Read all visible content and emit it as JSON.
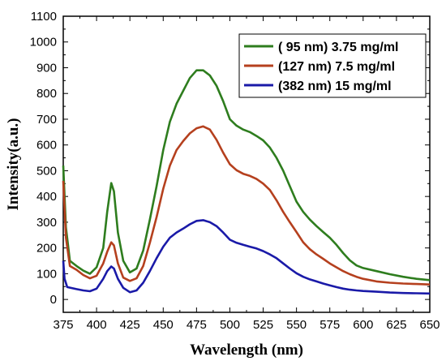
{
  "chart_data": {
    "type": "line",
    "xlabel": "Wavelength (nm)",
    "ylabel": "Intensity(a.u.)",
    "xlim": [
      375,
      650
    ],
    "ylim": [
      -50,
      1100
    ],
    "xticks": [
      375,
      400,
      425,
      450,
      475,
      500,
      525,
      550,
      575,
      600,
      625,
      650
    ],
    "yticks": [
      0,
      100,
      200,
      300,
      400,
      500,
      600,
      700,
      800,
      900,
      1000,
      1100
    ],
    "x_minor_step": 12.5,
    "y_minor_step": 50,
    "grid": false,
    "legend_position": "top-right",
    "series": [
      {
        "name": "( 95 nm) 3.75 mg/ml",
        "color": "#2e7d1e",
        "points": [
          [
            375,
            520
          ],
          [
            377,
            280
          ],
          [
            380,
            150
          ],
          [
            385,
            130
          ],
          [
            390,
            112
          ],
          [
            395,
            100
          ],
          [
            400,
            125
          ],
          [
            405,
            200
          ],
          [
            408,
            340
          ],
          [
            411,
            452
          ],
          [
            413,
            420
          ],
          [
            416,
            260
          ],
          [
            420,
            150
          ],
          [
            425,
            105
          ],
          [
            430,
            120
          ],
          [
            435,
            190
          ],
          [
            440,
            310
          ],
          [
            445,
            440
          ],
          [
            450,
            580
          ],
          [
            455,
            690
          ],
          [
            460,
            760
          ],
          [
            465,
            810
          ],
          [
            470,
            860
          ],
          [
            475,
            890
          ],
          [
            480,
            890
          ],
          [
            485,
            870
          ],
          [
            490,
            830
          ],
          [
            495,
            770
          ],
          [
            500,
            700
          ],
          [
            505,
            675
          ],
          [
            510,
            660
          ],
          [
            515,
            650
          ],
          [
            520,
            635
          ],
          [
            525,
            618
          ],
          [
            530,
            590
          ],
          [
            535,
            550
          ],
          [
            540,
            500
          ],
          [
            545,
            440
          ],
          [
            550,
            380
          ],
          [
            555,
            340
          ],
          [
            560,
            310
          ],
          [
            565,
            285
          ],
          [
            570,
            262
          ],
          [
            575,
            240
          ],
          [
            580,
            212
          ],
          [
            585,
            180
          ],
          [
            590,
            152
          ],
          [
            595,
            132
          ],
          [
            600,
            122
          ],
          [
            610,
            110
          ],
          [
            620,
            98
          ],
          [
            630,
            88
          ],
          [
            640,
            80
          ],
          [
            650,
            75
          ]
        ]
      },
      {
        "name": "(127 nm) 7.5 mg/ml",
        "color": "#b5401e",
        "points": [
          [
            375,
            460
          ],
          [
            377,
            240
          ],
          [
            380,
            130
          ],
          [
            385,
            115
          ],
          [
            390,
            95
          ],
          [
            395,
            82
          ],
          [
            400,
            92
          ],
          [
            405,
            140
          ],
          [
            408,
            185
          ],
          [
            411,
            222
          ],
          [
            413,
            210
          ],
          [
            416,
            140
          ],
          [
            420,
            85
          ],
          [
            425,
            72
          ],
          [
            430,
            82
          ],
          [
            435,
            130
          ],
          [
            440,
            220
          ],
          [
            445,
            320
          ],
          [
            450,
            430
          ],
          [
            455,
            520
          ],
          [
            460,
            580
          ],
          [
            465,
            615
          ],
          [
            470,
            645
          ],
          [
            475,
            665
          ],
          [
            480,
            672
          ],
          [
            485,
            660
          ],
          [
            490,
            620
          ],
          [
            495,
            570
          ],
          [
            500,
            525
          ],
          [
            505,
            502
          ],
          [
            510,
            488
          ],
          [
            515,
            480
          ],
          [
            520,
            468
          ],
          [
            525,
            450
          ],
          [
            530,
            425
          ],
          [
            535,
            385
          ],
          [
            540,
            340
          ],
          [
            545,
            300
          ],
          [
            550,
            262
          ],
          [
            555,
            222
          ],
          [
            560,
            195
          ],
          [
            565,
            175
          ],
          [
            570,
            158
          ],
          [
            575,
            140
          ],
          [
            580,
            125
          ],
          [
            585,
            110
          ],
          [
            590,
            98
          ],
          [
            595,
            88
          ],
          [
            600,
            80
          ],
          [
            610,
            70
          ],
          [
            620,
            65
          ],
          [
            630,
            62
          ],
          [
            640,
            60
          ],
          [
            650,
            58
          ]
        ]
      },
      {
        "name": "(382 nm) 15 mg/ml",
        "color": "#1a1aa8",
        "points": [
          [
            375,
            150
          ],
          [
            376,
            80
          ],
          [
            378,
            48
          ],
          [
            385,
            40
          ],
          [
            390,
            35
          ],
          [
            395,
            32
          ],
          [
            400,
            42
          ],
          [
            405,
            80
          ],
          [
            408,
            110
          ],
          [
            411,
            128
          ],
          [
            413,
            120
          ],
          [
            416,
            80
          ],
          [
            420,
            45
          ],
          [
            425,
            28
          ],
          [
            430,
            35
          ],
          [
            435,
            65
          ],
          [
            440,
            110
          ],
          [
            445,
            160
          ],
          [
            450,
            205
          ],
          [
            455,
            240
          ],
          [
            460,
            260
          ],
          [
            465,
            275
          ],
          [
            470,
            292
          ],
          [
            475,
            305
          ],
          [
            480,
            308
          ],
          [
            485,
            300
          ],
          [
            490,
            285
          ],
          [
            495,
            260
          ],
          [
            500,
            232
          ],
          [
            505,
            220
          ],
          [
            510,
            212
          ],
          [
            515,
            205
          ],
          [
            520,
            198
          ],
          [
            525,
            188
          ],
          [
            530,
            175
          ],
          [
            535,
            160
          ],
          [
            540,
            140
          ],
          [
            545,
            120
          ],
          [
            550,
            102
          ],
          [
            555,
            88
          ],
          [
            560,
            78
          ],
          [
            565,
            70
          ],
          [
            570,
            62
          ],
          [
            575,
            55
          ],
          [
            580,
            48
          ],
          [
            585,
            42
          ],
          [
            590,
            38
          ],
          [
            595,
            35
          ],
          [
            600,
            33
          ],
          [
            610,
            30
          ],
          [
            620,
            27
          ],
          [
            630,
            25
          ],
          [
            640,
            24
          ],
          [
            650,
            23
          ]
        ]
      }
    ]
  }
}
